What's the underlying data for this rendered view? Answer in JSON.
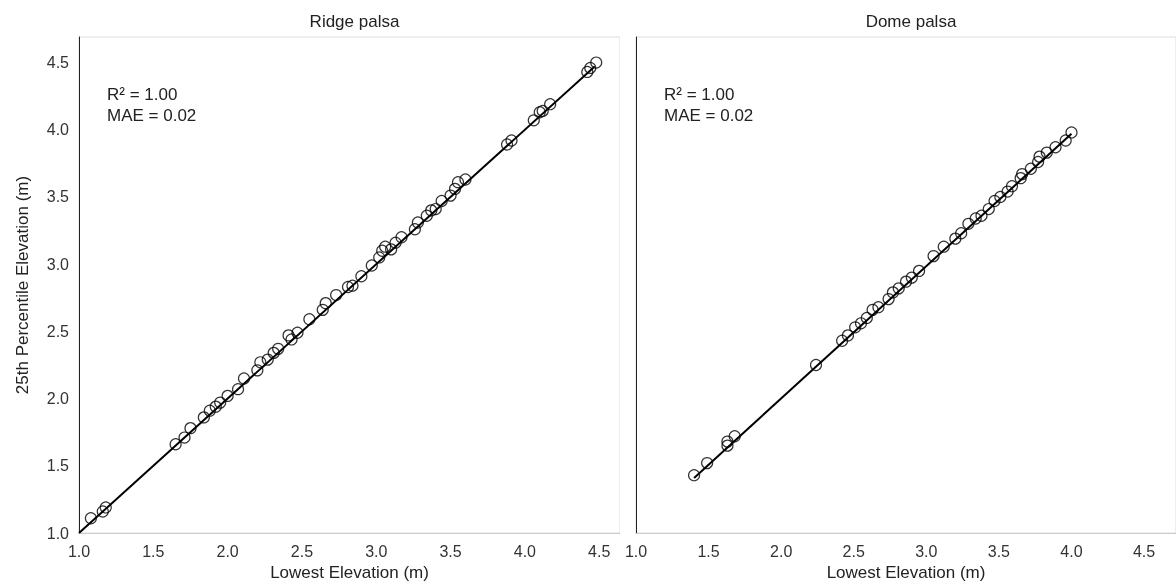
{
  "chart_data": [
    {
      "type": "scatter",
      "title": "Ridge palsa",
      "xlabel": "Lowest Elevation (m)",
      "ylabel": "25th Percentile Elevation (m)",
      "annotations": [
        "R² = 1.00",
        "MAE = 0.02"
      ],
      "marker": "circle",
      "xlim": [
        1.0,
        4.64
      ],
      "ylim": [
        1.0,
        4.69
      ],
      "xticks": [
        {
          "value": 1,
          "label": "1.0"
        },
        1.5,
        {
          "value": 2,
          "label": "2.0"
        },
        2.5,
        {
          "value": 3,
          "label": "3.0"
        },
        3.5,
        {
          "value": 4,
          "label": "4.0"
        },
        4.5
      ],
      "yticks": [
        {
          "value": 1,
          "label": "1.0"
        },
        1.5,
        {
          "value": 2,
          "label": "2.0"
        },
        2.5,
        {
          "value": 3,
          "label": "3.0"
        },
        3.5,
        {
          "value": 4,
          "label": "4.0"
        },
        4.5
      ],
      "series": [
        {
          "type": "scatter",
          "color": "#000000",
          "x": [
            1.08,
            1.16,
            1.18,
            1.65,
            1.71,
            1.75,
            1.84,
            1.88,
            1.92,
            1.95,
            2.0,
            2.07,
            2.11,
            2.2,
            2.22,
            2.27,
            2.31,
            2.34,
            2.43,
            2.41,
            2.47,
            2.55,
            2.64,
            2.66,
            2.73,
            2.81,
            2.84,
            2.9,
            2.97,
            3.02,
            3.04,
            3.06,
            3.1,
            3.13,
            3.17,
            3.26,
            3.28,
            3.34,
            3.37,
            3.4,
            3.44,
            3.5,
            3.53,
            3.55,
            3.6,
            3.88,
            3.91,
            4.06,
            4.1,
            4.12,
            4.17,
            4.42,
            4.44,
            4.48
          ],
          "values": [
            1.11,
            1.16,
            1.19,
            1.66,
            1.71,
            1.78,
            1.86,
            1.91,
            1.94,
            1.97,
            2.02,
            2.07,
            2.15,
            2.21,
            2.27,
            2.29,
            2.34,
            2.37,
            2.44,
            2.47,
            2.49,
            2.59,
            2.66,
            2.71,
            2.77,
            2.83,
            2.84,
            2.91,
            2.99,
            3.05,
            3.1,
            3.13,
            3.11,
            3.16,
            3.2,
            3.26,
            3.31,
            3.36,
            3.4,
            3.41,
            3.47,
            3.51,
            3.56,
            3.61,
            3.63,
            3.89,
            3.92,
            4.07,
            4.13,
            4.14,
            4.19,
            4.43,
            4.46,
            4.5
          ]
        },
        {
          "type": "line",
          "color": "#000000",
          "marker": "none",
          "x": [
            1.0,
            4.47
          ],
          "values": [
            1.0,
            4.47
          ]
        }
      ]
    },
    {
      "type": "scatter",
      "title": "Dome palsa",
      "xlabel": "Lowest Elevation (m)",
      "annotations": [
        "R² = 1.00",
        "MAE = 0.02"
      ],
      "marker": "circle",
      "tick_labels": "x",
      "xlim": [
        1.0,
        4.72
      ],
      "ylim": [
        1.0,
        4.69
      ],
      "xticks": [
        {
          "value": 1,
          "label": "1.0"
        },
        1.5,
        {
          "value": 2,
          "label": "2.0"
        },
        2.5,
        {
          "value": 3,
          "label": "3.0"
        },
        3.5,
        {
          "value": 4,
          "label": "4.0"
        },
        4.5
      ],
      "yticks": [
        1,
        1.5,
        2,
        2.5,
        3,
        3.5,
        4,
        4.5
      ],
      "series": [
        {
          "type": "scatter",
          "color": "#000000",
          "x": [
            1.4,
            1.49,
            1.63,
            1.63,
            1.68,
            2.24,
            2.42,
            2.46,
            2.51,
            2.55,
            2.59,
            2.63,
            2.67,
            2.74,
            2.77,
            2.81,
            2.86,
            2.9,
            2.95,
            3.05,
            3.12,
            3.2,
            3.24,
            3.29,
            3.34,
            3.38,
            3.43,
            3.47,
            3.51,
            3.56,
            3.59,
            3.65,
            3.66,
            3.72,
            3.77,
            3.78,
            3.83,
            3.89,
            3.96,
            4.0
          ],
          "values": [
            1.43,
            1.52,
            1.65,
            1.68,
            1.72,
            2.25,
            2.43,
            2.47,
            2.53,
            2.56,
            2.6,
            2.66,
            2.68,
            2.74,
            2.79,
            2.82,
            2.87,
            2.9,
            2.95,
            3.06,
            3.13,
            3.19,
            3.23,
            3.3,
            3.34,
            3.36,
            3.41,
            3.47,
            3.5,
            3.54,
            3.58,
            3.64,
            3.67,
            3.71,
            3.76,
            3.8,
            3.83,
            3.87,
            3.92,
            3.98
          ]
        },
        {
          "type": "line",
          "color": "#000000",
          "marker": "none",
          "x": [
            1.4,
            4.0
          ],
          "values": [
            1.41,
            3.97
          ]
        }
      ]
    }
  ]
}
